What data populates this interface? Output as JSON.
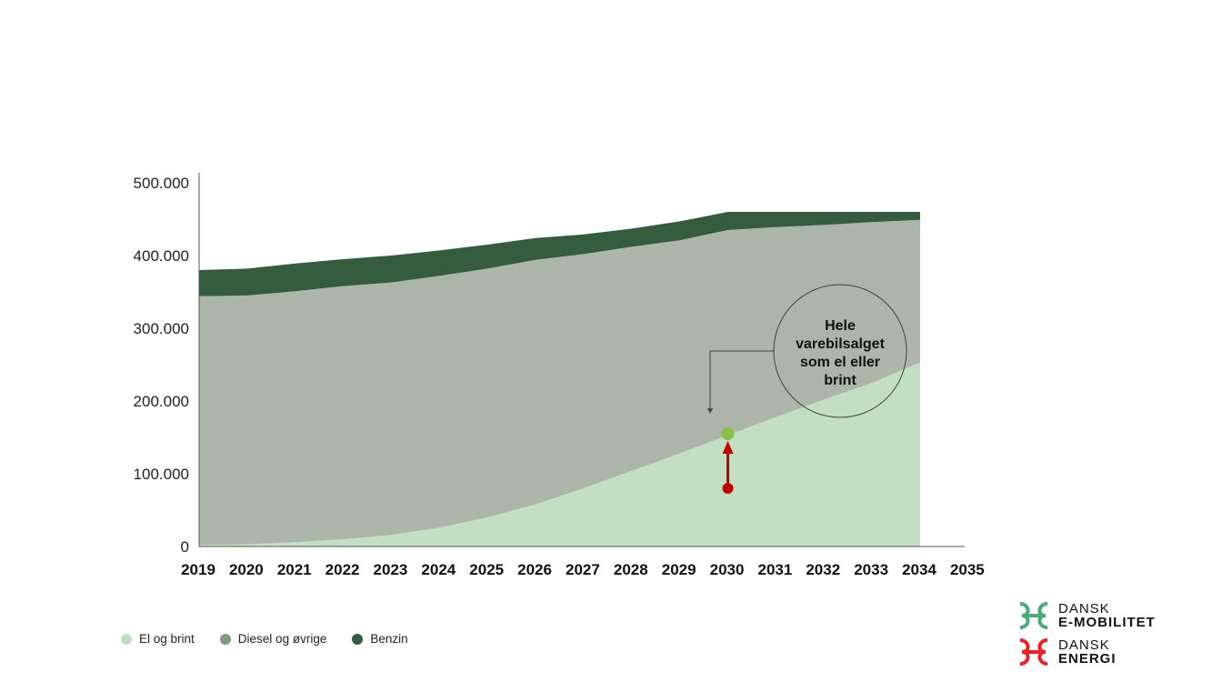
{
  "chart_data": {
    "type": "area",
    "stacked": true,
    "x": [
      2019,
      2020,
      2021,
      2022,
      2023,
      2024,
      2025,
      2026,
      2027,
      2028,
      2029,
      2030,
      2031,
      2032,
      2033,
      2034
    ],
    "x_tick_labels": [
      "2019",
      "2020",
      "2021",
      "2022",
      "2023",
      "2024",
      "2025",
      "2026",
      "2027",
      "2028",
      "2029",
      "2030",
      "2031",
      "2032",
      "2033",
      "2034",
      "2035"
    ],
    "xlim": [
      2019,
      2035
    ],
    "ylim": [
      0,
      500000
    ],
    "y_ticks": [
      0,
      100000,
      200000,
      300000,
      400000,
      500000
    ],
    "y_tick_labels": [
      "0",
      "100.000",
      "200.000",
      "300.000",
      "400.000",
      "500.000"
    ],
    "series": [
      {
        "name": "El og brint",
        "color": "#c2dfc4",
        "values": [
          2000,
          3000,
          6000,
          10000,
          16000,
          26000,
          40000,
          58000,
          80000,
          104000,
          128000,
          153000,
          178000,
          202000,
          225000,
          253000
        ]
      },
      {
        "name": "Diesel og øvrige",
        "color": "#adb5aa",
        "values": [
          342000,
          342000,
          345000,
          348000,
          347000,
          346000,
          342000,
          336000,
          322000,
          308000,
          293000,
          282000,
          261000,
          240000,
          221000,
          196000
        ]
      },
      {
        "name": "Benzin",
        "color": "#365c40",
        "values": [
          36000,
          37000,
          38000,
          37000,
          37000,
          35000,
          33000,
          30000,
          27000,
          25000,
          26000,
          25000,
          21000,
          18000,
          14000,
          11000
        ]
      }
    ],
    "annotation": {
      "text_lines": [
        "Hele",
        "varebilsalget",
        "som el eller",
        "brint"
      ],
      "x": 2030,
      "point_from": 80000,
      "point_to": 155000,
      "point_from_color": "#c00000",
      "point_to_color": "#8cc04a"
    },
    "legend_position": "bottom-left",
    "grid": false
  },
  "logos": [
    {
      "line1": "DANSK",
      "line2": "E-MOBILITET",
      "icon": "dansk-emobilitet-logo-icon",
      "color": "#4aaa78"
    },
    {
      "line1": "DANSK",
      "line2": "ENERGI",
      "icon": "dansk-energi-logo-icon",
      "color": "#e3222b"
    }
  ]
}
